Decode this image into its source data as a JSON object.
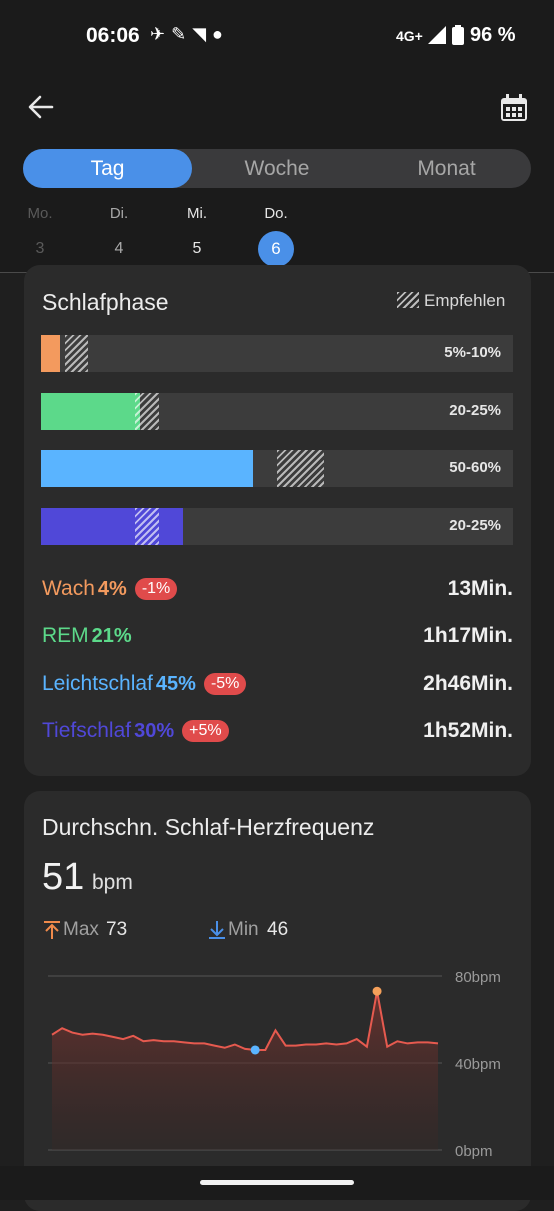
{
  "status_bar": {
    "time": "06:06",
    "network": "4G+",
    "battery": "96 %"
  },
  "tabs": [
    {
      "label": "Tag",
      "active": true
    },
    {
      "label": "Woche",
      "active": false
    },
    {
      "label": "Monat",
      "active": false
    }
  ],
  "days": [
    {
      "name": "Mo.",
      "num": "3",
      "state": "disabled"
    },
    {
      "name": "Di.",
      "num": "4",
      "state": "normal"
    },
    {
      "name": "Mi.",
      "num": "5",
      "state": "normal"
    },
    {
      "name": "Do.",
      "num": "6",
      "state": "selected"
    }
  ],
  "sleep_phase": {
    "title": "Schlafphase",
    "legend": "Empfehlen",
    "bars": [
      {
        "range": "5%-10%",
        "color": "#f39a5e",
        "value": 4,
        "rec_min": 5,
        "rec_max": 10
      },
      {
        "range": "20-25%",
        "color": "#5cd98a",
        "value": 21,
        "rec_min": 20,
        "rec_max": 25
      },
      {
        "range": "50-60%",
        "color": "#5ab4ff",
        "value": 45,
        "rec_min": 50,
        "rec_max": 60
      },
      {
        "range": "20-25%",
        "color": "#5048d8",
        "value": 30,
        "rec_min": 20,
        "rec_max": 25
      }
    ],
    "rows": [
      {
        "name": "Wach",
        "pct": "4%",
        "badge": "-1%",
        "duration": "13Min.",
        "color": "#f39a5e"
      },
      {
        "name": "REM",
        "pct": "21%",
        "badge": "",
        "duration": "1h17Min.",
        "color": "#5cd98a"
      },
      {
        "name": "Leichtschlaf",
        "pct": "45%",
        "badge": "-5%",
        "duration": "2h46Min.",
        "color": "#5ab4ff"
      },
      {
        "name": "Tiefschlaf",
        "pct": "30%",
        "badge": "+5%",
        "duration": "1h52Min.",
        "color": "#5048d8"
      }
    ]
  },
  "heart_rate": {
    "title": "Durchschn. Schlaf-Herzfrequenz",
    "value": "51",
    "unit": "bpm",
    "max_label": "Max",
    "max_value": "73",
    "min_label": "Min",
    "min_value": "46",
    "chart_data": {
      "type": "area",
      "ylim": [
        0,
        80
      ],
      "y_ticks": [
        "80bpm",
        "40bpm",
        "0bpm"
      ],
      "values": [
        53,
        56,
        54,
        53,
        53.5,
        53,
        52,
        51,
        52.5,
        50,
        50.5,
        50,
        50,
        49.5,
        49,
        49,
        48,
        47,
        48.5,
        46.5,
        46,
        46,
        55,
        48,
        48,
        48.5,
        48.5,
        49,
        48.5,
        49,
        51,
        47.5,
        73,
        47.5,
        50,
        49,
        49.5,
        49.5,
        49
      ],
      "max_point": {
        "value": 73
      },
      "min_point": {
        "value": 46
      },
      "line_color": "#e65a4f",
      "max_color": "#f5a05a",
      "min_color": "#5ab4ff"
    }
  }
}
